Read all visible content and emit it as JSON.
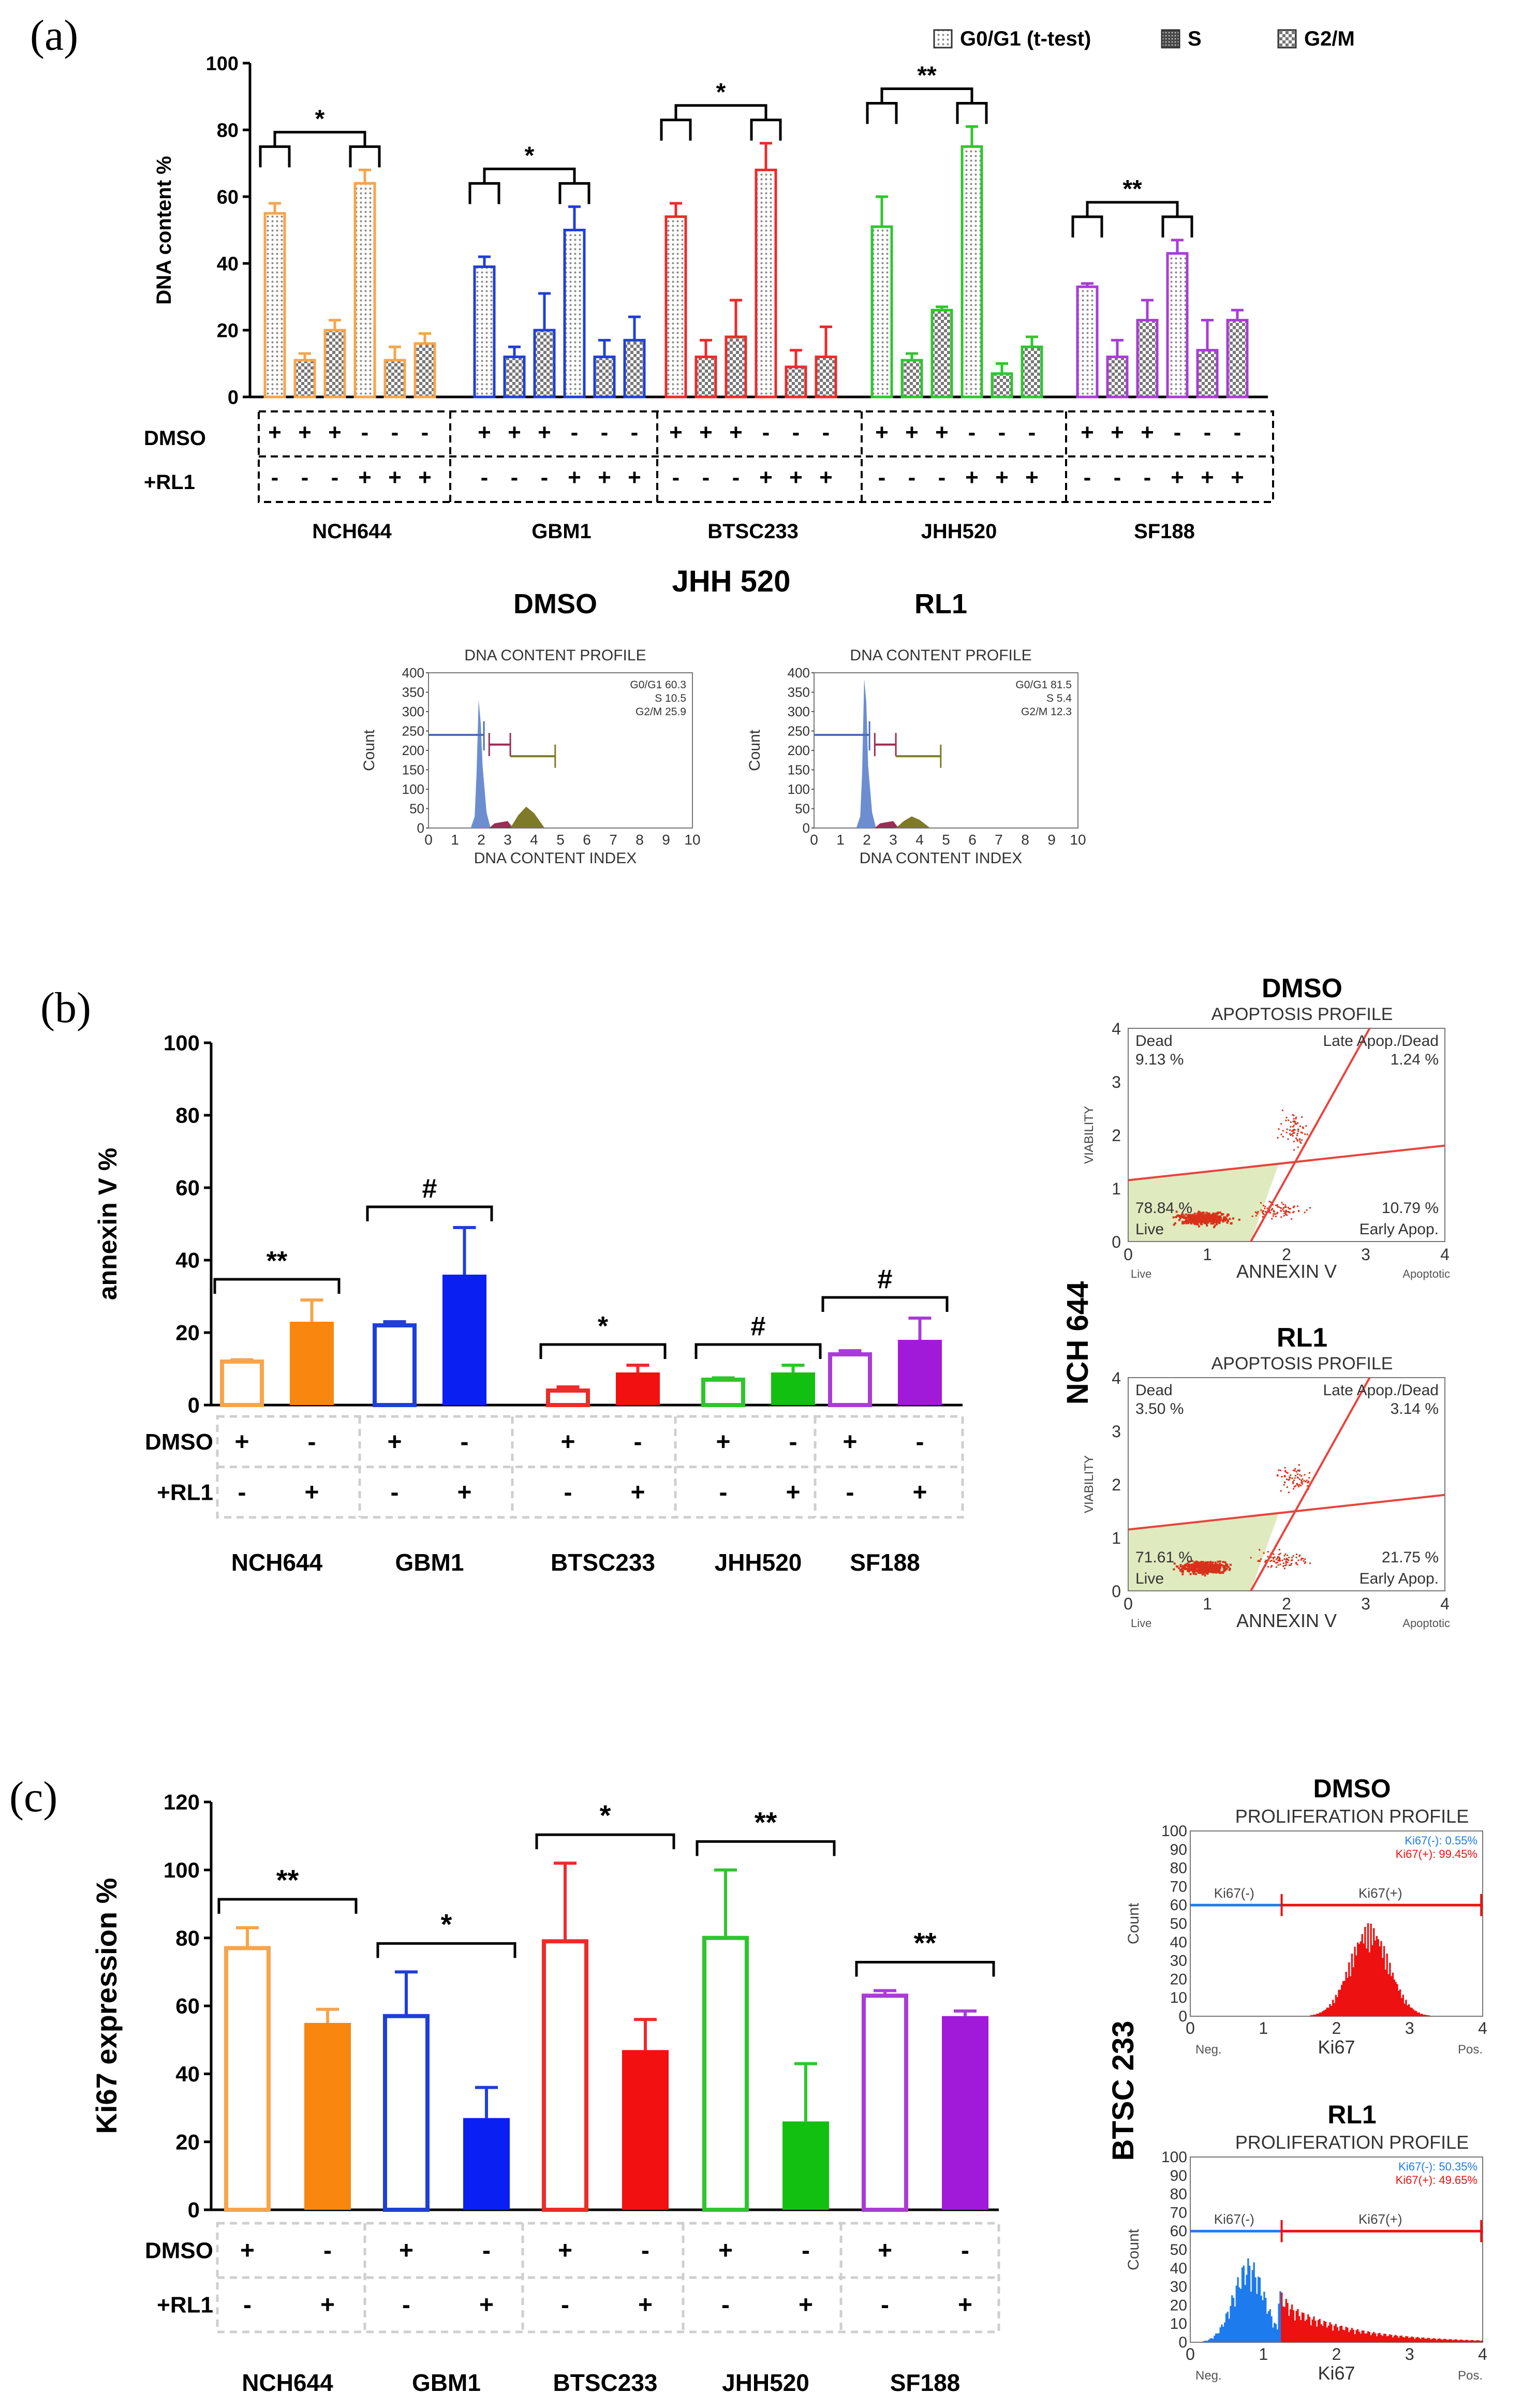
{
  "figure": {
    "panel_a_letter": "(a)",
    "panel_b_letter": "(b)",
    "panel_c_letter": "(c)"
  },
  "colors": {
    "NCH644": "#F7A44A",
    "GBM1": "#1F3FD8",
    "BTSC233": "#EE2A2A",
    "JHH520": "#2EC62E",
    "SF188": "#A93CD6",
    "nch644_solid": "#F8860F",
    "gbm1_solid": "#0A20F2",
    "btsc233_solid": "#F21010",
    "jhh520_solid": "#12C012",
    "sf188_solid": "#A11AD9",
    "hist_blue": "#6C8ED0",
    "hist_maroon": "#9B2E55",
    "hist_olive": "#7E7A28",
    "ki67_neg": "#1E7BEE",
    "ki67_pos": "#EE1111",
    "gate_fill": "#DDE8B8",
    "scatter": "#D8311A"
  },
  "row_labels": {
    "dmso": "DMSO",
    "rl1": "+RL1"
  },
  "cell_lines": [
    "NCH644",
    "GBM1",
    "BTSC233",
    "JHH520",
    "SF188"
  ],
  "chart_data": [
    {
      "id": "panel_a",
      "type": "bar",
      "ylabel": "DNA content %",
      "ylim": [
        0,
        100
      ],
      "yticks": [
        "0",
        "20",
        "40",
        "60",
        "80",
        "100"
      ],
      "legend": [
        "G0/G1 (t-test)",
        "S",
        "G2/M"
      ],
      "legend_position": "top-right",
      "groups": [
        "NCH644",
        "GBM1",
        "BTSC233",
        "JHH520",
        "SF188"
      ],
      "series": [
        {
          "name": "G0/G1 DMSO",
          "values": [
            55,
            39,
            54,
            51,
            33
          ],
          "errors": [
            3,
            3,
            4,
            9,
            1
          ]
        },
        {
          "name": "S DMSO",
          "values": [
            11,
            12,
            12,
            11,
            12
          ],
          "errors": [
            2,
            3,
            5,
            2,
            5
          ]
        },
        {
          "name": "G2/M DMSO",
          "values": [
            20,
            20,
            18,
            26,
            23
          ],
          "errors": [
            3,
            11,
            11,
            1,
            6
          ]
        },
        {
          "name": "G0/G1 RL1",
          "values": [
            64,
            50,
            68,
            75,
            43
          ],
          "errors": [
            4,
            7,
            8,
            6,
            4
          ]
        },
        {
          "name": "S RL1",
          "values": [
            11,
            12,
            9,
            7,
            14
          ],
          "errors": [
            4,
            5,
            5,
            3,
            9
          ]
        },
        {
          "name": "G2/M RL1",
          "values": [
            16,
            17,
            12,
            15,
            23
          ],
          "errors": [
            3,
            7,
            9,
            3,
            3
          ]
        }
      ],
      "dmso_signs": [
        "+",
        "+",
        "+",
        "-",
        "-",
        "-"
      ],
      "rl1_signs": [
        "-",
        "-",
        "-",
        "+",
        "+",
        "+"
      ],
      "significance": [
        "*",
        "*",
        "*",
        "**",
        "**"
      ]
    },
    {
      "id": "panel_a_hist_dmso",
      "type": "area",
      "title": "DMSO",
      "header": "DNA CONTENT PROFILE",
      "xlabel": "DNA CONTENT INDEX",
      "ylabel": "Count",
      "xlim": [
        0,
        10
      ],
      "ylim": [
        0,
        400
      ],
      "xticks": [
        "0",
        "1",
        "2",
        "3",
        "4",
        "5",
        "6",
        "7",
        "8",
        "9",
        "10"
      ],
      "yticks": [
        "0",
        "50",
        "100",
        "150",
        "200",
        "250",
        "300",
        "350",
        "400"
      ],
      "stats": [
        "G0/G1 60.3",
        "S 10.5",
        "G2/M 25.9"
      ]
    },
    {
      "id": "panel_a_hist_rl1",
      "type": "area",
      "title": "RL1",
      "header": "DNA CONTENT PROFILE",
      "xlabel": "DNA CONTENT INDEX",
      "ylabel": "Count",
      "xlim": [
        0,
        10
      ],
      "ylim": [
        0,
        400
      ],
      "xticks": [
        "0",
        "1",
        "2",
        "3",
        "4",
        "5",
        "6",
        "7",
        "8",
        "9",
        "10"
      ],
      "yticks": [
        "0",
        "50",
        "100",
        "150",
        "200",
        "250",
        "300",
        "350",
        "400"
      ],
      "stats": [
        "G0/G1 81.5",
        "S 5.4",
        "G2/M 12.3"
      ]
    },
    {
      "id": "panel_b",
      "type": "bar",
      "ylabel": "annexin V %",
      "ylim": [
        0,
        100
      ],
      "yticks": [
        "0",
        "20",
        "40",
        "60",
        "80",
        "100"
      ],
      "groups": [
        "NCH644",
        "GBM1",
        "BTSC233",
        "JHH520",
        "SF188"
      ],
      "series": [
        {
          "name": "DMSO",
          "values": [
            12,
            22,
            4,
            7,
            14
          ],
          "errors": [
            0.5,
            1,
            1,
            0.5,
            1
          ]
        },
        {
          "name": "RL1",
          "values": [
            23,
            36,
            9,
            9,
            18
          ],
          "errors": [
            6,
            13,
            2,
            2,
            6
          ]
        }
      ],
      "dmso_signs": [
        "+",
        "-"
      ],
      "rl1_signs": [
        "-",
        "+"
      ],
      "significance": [
        "**",
        "#",
        "*",
        "#",
        "#"
      ]
    },
    {
      "id": "panel_b_scatter_dmso",
      "type": "scatter",
      "title": "DMSO",
      "header": "APOPTOSIS PROFILE",
      "xlabel": "ANNEXIN V",
      "ylabel": "VIABILITY",
      "xlim": [
        0,
        4
      ],
      "ylim": [
        0,
        4
      ],
      "xticks": [
        "0",
        "1",
        "2",
        "3",
        "4"
      ],
      "yticks": [
        "0",
        "1",
        "2",
        "3",
        "4"
      ],
      "x_left": "Live",
      "x_right": "Apoptotic",
      "quadrants": {
        "dead": "Dead",
        "dead_pct": "9.13 %",
        "late": "Late Apop./Dead",
        "late_pct": "1.24 %",
        "live": "Live",
        "live_pct": "78.84 %",
        "early": "Early Apop.",
        "early_pct": "10.79 %"
      }
    },
    {
      "id": "panel_b_scatter_rl1",
      "type": "scatter",
      "title": "RL1",
      "header": "APOPTOSIS PROFILE",
      "xlabel": "ANNEXIN V",
      "ylabel": "VIABILITY",
      "xlim": [
        0,
        4
      ],
      "ylim": [
        0,
        4
      ],
      "xticks": [
        "0",
        "1",
        "2",
        "3",
        "4"
      ],
      "yticks": [
        "0",
        "1",
        "2",
        "3",
        "4"
      ],
      "x_left": "Live",
      "x_right": "Apoptotic",
      "quadrants": {
        "dead": "Dead",
        "dead_pct": "3.50 %",
        "late": "Late Apop./Dead",
        "late_pct": "3.14 %",
        "live": "Live",
        "live_pct": "71.61 %",
        "early": "Early Apop.",
        "early_pct": "21.75 %"
      }
    },
    {
      "id": "panel_c",
      "type": "bar",
      "ylabel": "Ki67 expression %",
      "ylim": [
        0,
        120
      ],
      "yticks": [
        "0",
        "20",
        "40",
        "60",
        "80",
        "100",
        "120"
      ],
      "groups": [
        "NCH644",
        "GBM1",
        "BTSC233",
        "JHH520",
        "SF188"
      ],
      "series": [
        {
          "name": "DMSO",
          "values": [
            77,
            57,
            79,
            80,
            63
          ],
          "errors": [
            6,
            13,
            23,
            20,
            1.5
          ]
        },
        {
          "name": "RL1",
          "values": [
            55,
            27,
            47,
            26,
            57
          ],
          "errors": [
            4,
            9,
            9,
            17,
            1.5
          ]
        }
      ],
      "dmso_signs": [
        "+",
        "-"
      ],
      "rl1_signs": [
        "-",
        "+"
      ],
      "significance": [
        "**",
        "*",
        "*",
        "**",
        "**"
      ]
    },
    {
      "id": "panel_c_hist_dmso",
      "type": "area",
      "title": "DMSO",
      "header": "PROLIFERATION PROFILE",
      "xlabel": "Ki67",
      "ylabel": "Count",
      "xlim": [
        0,
        4
      ],
      "ylim": [
        0,
        100
      ],
      "xticks": [
        "0",
        "1",
        "2",
        "3",
        "4"
      ],
      "yticks": [
        "0",
        "10",
        "20",
        "30",
        "40",
        "50",
        "60",
        "70",
        "80",
        "90",
        "100"
      ],
      "x_left": "Neg.",
      "x_right": "Pos.",
      "neg_gate": "Ki67(-)",
      "pos_gate": "Ki67(+)",
      "stat_neg": "Ki67(-): 0.55%",
      "stat_pos": "Ki67(+): 99.45%"
    },
    {
      "id": "panel_c_hist_rl1",
      "type": "area",
      "title": "RL1",
      "header": "PROLIFERATION PROFILE",
      "xlabel": "Ki67",
      "ylabel": "Count",
      "xlim": [
        0,
        4
      ],
      "ylim": [
        0,
        100
      ],
      "xticks": [
        "0",
        "1",
        "2",
        "3",
        "4"
      ],
      "yticks": [
        "0",
        "10",
        "20",
        "30",
        "40",
        "50",
        "60",
        "70",
        "80",
        "90",
        "100"
      ],
      "x_left": "Neg.",
      "x_right": "Pos.",
      "neg_gate": "Ki67(-)",
      "pos_gate": "Ki67(+)",
      "stat_neg": "Ki67(-): 50.35%",
      "stat_pos": "Ki67(+): 49.65%"
    }
  ],
  "side_titles": {
    "a_center": "JHH 520",
    "b_side": "NCH 644",
    "c_side": "BTSC 233"
  }
}
